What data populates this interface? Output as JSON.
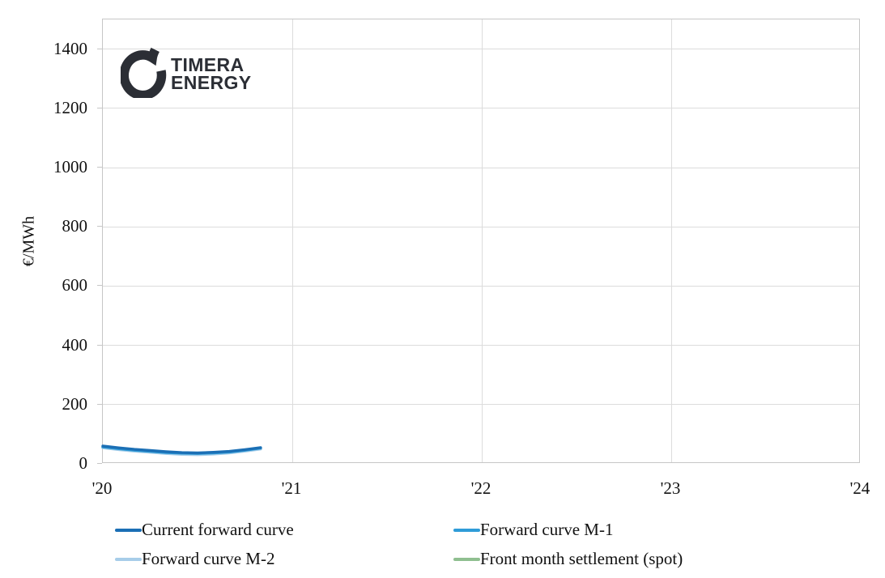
{
  "logo": {
    "line1": "TIMERA",
    "line2": "ENERGY",
    "color": "#2b2e35",
    "icon": "timera-ring-logo"
  },
  "colors": {
    "grid": "#dcdcdc",
    "plot_border": "#c6c6c6",
    "text": "#111111",
    "background": "#ffffff"
  },
  "chart_data": {
    "type": "line",
    "title": "",
    "xlabel": "",
    "ylabel": "€/MWh",
    "xlim": [
      2020,
      2024
    ],
    "ylim": [
      0,
      1500
    ],
    "grid": true,
    "legend_position": "bottom",
    "yticks": {
      "values": [
        0,
        200,
        400,
        600,
        800,
        1000,
        1200,
        1400
      ],
      "labels": [
        "0",
        "200",
        "400",
        "600",
        "800",
        "1000",
        "1200",
        "1400"
      ]
    },
    "xticks": {
      "values": [
        2020,
        2021,
        2022,
        2023,
        2024
      ],
      "labels": [
        "'20",
        "'21",
        "'22",
        "'23",
        "'24"
      ]
    },
    "x_months": [
      2020.0,
      2020.083,
      2020.167,
      2020.25,
      2020.333,
      2020.417,
      2020.5,
      2020.583,
      2020.667,
      2020.75,
      2020.833
    ],
    "series": [
      {
        "name": "Front month settlement (spot)",
        "color": "#8fbf90",
        "values": [
          56,
          50,
          45,
          40,
          36,
          33,
          33,
          35,
          38,
          44,
          51
        ]
      },
      {
        "name": "Forward curve M-2",
        "color": "#a7cde9",
        "values": [
          54,
          48,
          43,
          39,
          35,
          32,
          31,
          33,
          37,
          43,
          50
        ]
      },
      {
        "name": "Forward curve M-1",
        "color": "#2f9cd8",
        "values": [
          57,
          51,
          46,
          42,
          38,
          36,
          35,
          37,
          40,
          46,
          53
        ]
      },
      {
        "name": "Current forward curve",
        "color": "#1b6fb5",
        "values": [
          60,
          54,
          49,
          45,
          41,
          38,
          37,
          39,
          42,
          48,
          55
        ]
      }
    ],
    "legend_order": [
      "Current forward curve",
      "Forward curve M-1",
      "Forward curve M-2",
      "Front month settlement (spot)"
    ]
  }
}
